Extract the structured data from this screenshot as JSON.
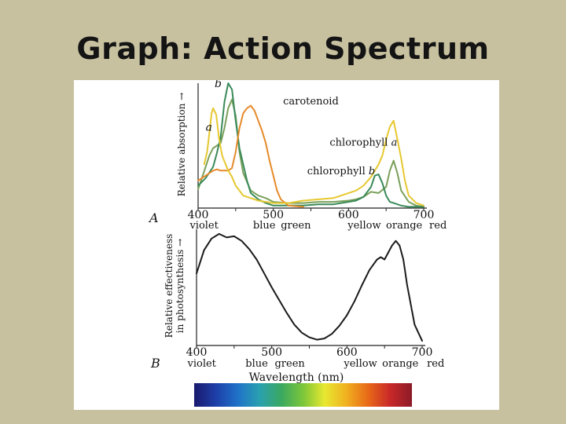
{
  "slide": {
    "title": "Graph: Action Spectrum"
  },
  "figure": {
    "spectrum_colors": [
      "#1a1a6e",
      "#1d3fa8",
      "#1f72c8",
      "#2aa0b0",
      "#3aa860",
      "#7cc63a",
      "#e8e830",
      "#f0b020",
      "#e86818",
      "#c82828",
      "#8c1a28"
    ]
  },
  "chart_data": [
    {
      "type": "line",
      "panel_label": "A",
      "ylabel": "Relative absorption →",
      "ticks": [
        400,
        500,
        600,
        700
      ],
      "xlim": [
        400,
        700
      ],
      "ylim": [
        0,
        1
      ],
      "color_labels": [
        {
          "text": "violet",
          "x": 408
        },
        {
          "text": "blue",
          "x": 488
        },
        {
          "text": "green",
          "x": 530
        },
        {
          "text": "yellow",
          "x": 621
        },
        {
          "text": "orange",
          "x": 674
        },
        {
          "text": "red",
          "x": 719
        }
      ],
      "series": [
        {
          "name": "chlorophyll a",
          "color": "#7aa05a",
          "label_text": "chlorophyll",
          "label_letter": "a",
          "label_x": 575,
          "label_y": 0.5,
          "peak_letter": "a",
          "peak_x": 410,
          "peak_y": 0.62,
          "x": [
            400,
            405,
            410,
            415,
            420,
            425,
            430,
            435,
            440,
            445,
            450,
            455,
            460,
            470,
            480,
            490,
            500,
            520,
            540,
            560,
            580,
            600,
            610,
            620,
            630,
            640,
            650,
            655,
            660,
            665,
            670,
            680,
            690,
            700
          ],
          "y": [
            0.15,
            0.24,
            0.33,
            0.42,
            0.48,
            0.5,
            0.52,
            0.64,
            0.8,
            0.87,
            0.74,
            0.45,
            0.28,
            0.14,
            0.1,
            0.08,
            0.05,
            0.04,
            0.04,
            0.05,
            0.05,
            0.06,
            0.07,
            0.09,
            0.13,
            0.12,
            0.17,
            0.3,
            0.38,
            0.28,
            0.14,
            0.05,
            0.02,
            0.01
          ]
        },
        {
          "name": "chlorophyll b",
          "color": "#3a8a5a",
          "label_text": "chlorophyll",
          "label_letter": "b",
          "label_x": 545,
          "label_y": 0.27,
          "peak_letter": "b",
          "peak_x": 422,
          "peak_y": 0.97,
          "x": [
            400,
            410,
            420,
            425,
            430,
            435,
            440,
            445,
            450,
            455,
            460,
            465,
            470,
            480,
            490,
            500,
            520,
            540,
            560,
            580,
            600,
            610,
            620,
            630,
            635,
            640,
            645,
            650,
            655,
            660,
            670,
            680,
            700
          ],
          "y": [
            0.18,
            0.24,
            0.33,
            0.44,
            0.57,
            0.85,
            1.0,
            0.95,
            0.7,
            0.48,
            0.35,
            0.22,
            0.12,
            0.07,
            0.04,
            0.02,
            0.02,
            0.02,
            0.03,
            0.03,
            0.05,
            0.06,
            0.09,
            0.17,
            0.26,
            0.27,
            0.2,
            0.1,
            0.05,
            0.04,
            0.02,
            0.01,
            0.01
          ]
        },
        {
          "name": "carotenoid",
          "color": "#e68a2a",
          "label_text": "carotenoid",
          "label_letter": "",
          "label_x": 513,
          "label_y": 0.83,
          "peak_letter": "",
          "peak_x": 0,
          "peak_y": 0,
          "x": [
            400,
            410,
            420,
            425,
            430,
            440,
            445,
            450,
            455,
            460,
            465,
            470,
            475,
            480,
            485,
            490,
            495,
            500,
            505,
            510,
            520,
            540
          ],
          "y": [
            0.22,
            0.26,
            0.3,
            0.31,
            0.3,
            0.3,
            0.32,
            0.45,
            0.64,
            0.76,
            0.8,
            0.82,
            0.78,
            0.7,
            0.62,
            0.52,
            0.38,
            0.26,
            0.14,
            0.07,
            0.02,
            0.01
          ]
        },
        {
          "name": "long-wavelength curve",
          "color": "#e6c830",
          "label_text": "",
          "label_letter": "",
          "label_x": 0,
          "label_y": 0,
          "peak_letter": "",
          "peak_x": 0,
          "peak_y": 0,
          "x": [
            408,
            412,
            415,
            418,
            420,
            424,
            428,
            432,
            436,
            440,
            445,
            450,
            460,
            470,
            480,
            500,
            520,
            540,
            560,
            580,
            600,
            610,
            620,
            630,
            640,
            645,
            650,
            655,
            660,
            665,
            670,
            675,
            680,
            690,
            700
          ],
          "y": [
            0.35,
            0.45,
            0.6,
            0.76,
            0.8,
            0.75,
            0.55,
            0.42,
            0.36,
            0.3,
            0.25,
            0.18,
            0.1,
            0.08,
            0.06,
            0.04,
            0.04,
            0.06,
            0.07,
            0.08,
            0.12,
            0.14,
            0.18,
            0.25,
            0.35,
            0.42,
            0.55,
            0.65,
            0.7,
            0.55,
            0.4,
            0.22,
            0.1,
            0.04,
            0.02
          ]
        }
      ]
    },
    {
      "type": "line",
      "panel_label": "B",
      "ylabel_lines": [
        "Relative effectiveness",
        "in photosynthesis →"
      ],
      "xlabel": "Wavelength (nm)",
      "ticks": [
        400,
        500,
        600,
        700
      ],
      "xlim": [
        400,
        700
      ],
      "ylim": [
        0,
        1
      ],
      "color_labels": [
        {
          "text": "violet",
          "x": 407
        },
        {
          "text": "blue",
          "x": 480
        },
        {
          "text": "green",
          "x": 524
        },
        {
          "text": "yellow",
          "x": 618
        },
        {
          "text": "orange",
          "x": 671
        },
        {
          "text": "red",
          "x": 718
        }
      ],
      "series": [
        {
          "name": "action spectrum",
          "color": "#1a1a1a",
          "x": [
            400,
            405,
            410,
            420,
            430,
            440,
            450,
            460,
            470,
            480,
            490,
            500,
            510,
            520,
            530,
            540,
            550,
            560,
            570,
            580,
            590,
            600,
            610,
            620,
            630,
            640,
            645,
            650,
            655,
            660,
            665,
            670,
            675,
            680,
            690,
            700
          ],
          "y": [
            0.62,
            0.72,
            0.82,
            0.92,
            0.96,
            0.93,
            0.94,
            0.9,
            0.83,
            0.74,
            0.62,
            0.5,
            0.39,
            0.28,
            0.18,
            0.11,
            0.07,
            0.05,
            0.06,
            0.1,
            0.17,
            0.26,
            0.38,
            0.52,
            0.65,
            0.74,
            0.76,
            0.74,
            0.8,
            0.86,
            0.9,
            0.86,
            0.74,
            0.52,
            0.18,
            0.04
          ]
        }
      ]
    }
  ]
}
